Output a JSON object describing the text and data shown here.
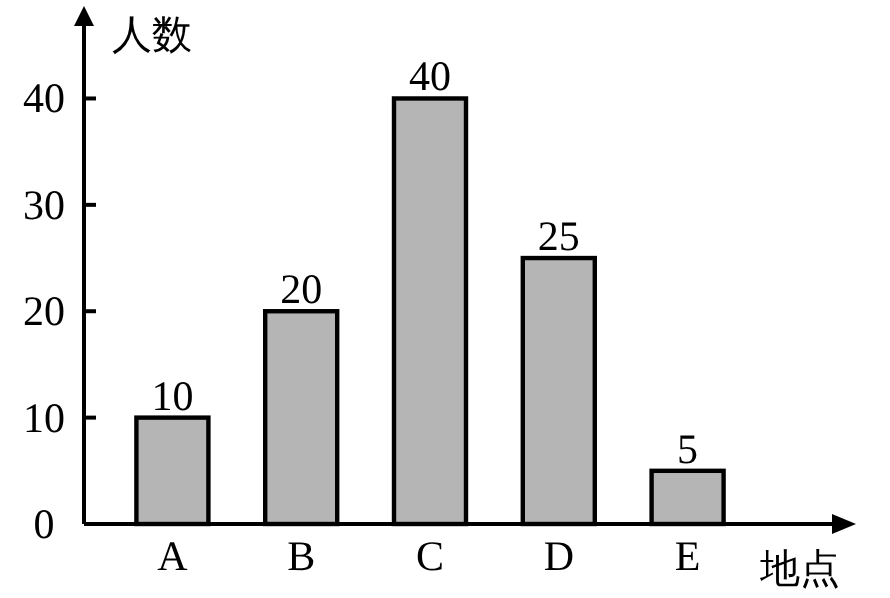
{
  "chart_data": {
    "type": "bar",
    "xlabel": "地点",
    "ylabel": "人数",
    "categories": [
      "A",
      "B",
      "C",
      "D",
      "E"
    ],
    "values": [
      10,
      20,
      40,
      25,
      5
    ],
    "color": "#b5b5b5",
    "ylim": [
      0,
      47
    ],
    "yticks": [
      0,
      10,
      20,
      30,
      40
    ],
    "data_labels": true
  }
}
